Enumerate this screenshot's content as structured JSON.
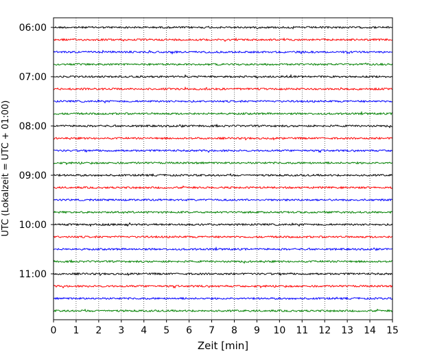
{
  "chart_data": {
    "type": "line",
    "title": "",
    "xlabel": "Zeit  [min]",
    "ylabel": "UTC (Lokalzeit = UTC + 01:00)",
    "xlim": [
      0,
      15
    ],
    "x_ticks": [
      0,
      1,
      2,
      3,
      4,
      5,
      6,
      7,
      8,
      9,
      10,
      11,
      12,
      13,
      14,
      15
    ],
    "y_tick_labels": [
      "06:00",
      "07:00",
      "08:00",
      "09:00",
      "10:00",
      "11:00"
    ],
    "y_tick_rows": [
      0,
      4,
      8,
      12,
      16,
      20
    ],
    "grid": "vertical dotted",
    "legend": "none",
    "trace_interval_minutes": 15,
    "first_trace_start": "06:00",
    "trace_count": 24,
    "color_cycle": [
      "#000000",
      "#ff0000",
      "#0000ff",
      "#008000"
    ],
    "trace_starts": [
      "06:00",
      "06:15",
      "06:30",
      "06:45",
      "07:00",
      "07:15",
      "07:30",
      "07:45",
      "08:00",
      "08:15",
      "08:30",
      "08:45",
      "09:00",
      "09:15",
      "09:30",
      "09:45",
      "10:00",
      "10:15",
      "10:30",
      "10:45",
      "11:00",
      "11:15",
      "11:30",
      "11:45"
    ]
  }
}
